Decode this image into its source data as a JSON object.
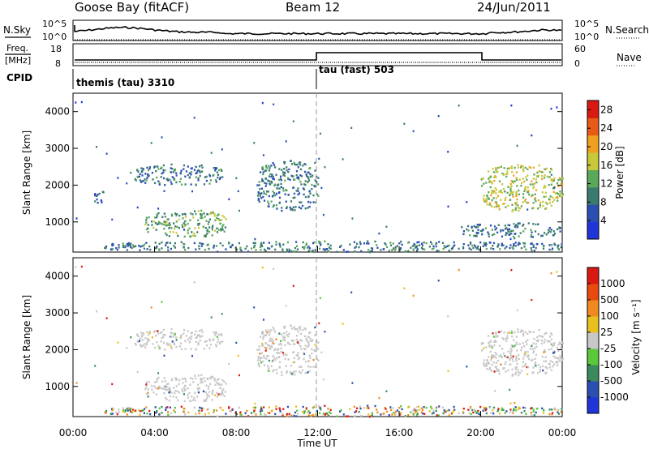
{
  "header": {
    "station": "Goose Bay (fitACF)",
    "beam": "Beam 12",
    "date": "24/Jun/2011"
  },
  "panels": {
    "nsky": {
      "label": "N.Sky",
      "left_ticks": [
        "10^5",
        "10^0"
      ],
      "right_ticks": [
        "10^5",
        "10^0"
      ],
      "right_label": "N.Search"
    },
    "freq": {
      "label_line1": "Freq.",
      "label_line2": "[MHz]",
      "left_ticks": [
        "18",
        "8"
      ],
      "right_ticks": [
        "60",
        "0"
      ],
      "right_label": "Nave"
    },
    "cpid": {
      "label": "CPID",
      "modes": [
        {
          "label": "themis (tau) 3310",
          "start_hour": 0
        },
        {
          "label": "tau (fast) 503",
          "start_hour": 12
        }
      ]
    }
  },
  "chart_data": [
    {
      "type": "heatmap",
      "title": "Power",
      "xlabel": "Time UT",
      "ylabel": "Slant Range [km]",
      "xlim": [
        0,
        24
      ],
      "ylim": [
        180,
        4500
      ],
      "x_ticks": [
        "00:00",
        "04:00",
        "08:00",
        "12:00",
        "16:00",
        "20:00",
        "00:00"
      ],
      "y_ticks": [
        1000,
        2000,
        3000,
        4000
      ],
      "colorbar": {
        "label": "Power [dB]",
        "ticks": [
          4,
          8,
          12,
          16,
          20,
          24,
          28
        ],
        "range": [
          0,
          30
        ],
        "colors": [
          "#1f35d8",
          "#2a4fb0",
          "#3b7a6e",
          "#5aa85a",
          "#c8c83a",
          "#f0a020",
          "#e85a18",
          "#d91a12"
        ]
      },
      "echo_regions": [
        {
          "t": [
            3.0,
            7.3
          ],
          "range": [
            2000,
            2600
          ],
          "dominant_db": 8
        },
        {
          "t": [
            1.0,
            1.5
          ],
          "range": [
            1500,
            1900
          ],
          "dominant_db": 4
        },
        {
          "t": [
            3.5,
            7.5
          ],
          "range": [
            600,
            1350
          ],
          "dominant_db": 12
        },
        {
          "t": [
            9.0,
            12.0
          ],
          "range": [
            1300,
            2700
          ],
          "dominant_db": 6
        },
        {
          "t": [
            1.5,
            24.0
          ],
          "range": [
            200,
            500
          ],
          "dominant_db": 8
        },
        {
          "t": [
            20.0,
            24.0
          ],
          "range": [
            1300,
            2600
          ],
          "dominant_db": 16
        },
        {
          "t": [
            19.0,
            24.0
          ],
          "range": [
            600,
            1000
          ],
          "dominant_db": 8
        }
      ]
    },
    {
      "type": "heatmap",
      "title": "Velocity",
      "xlabel": "Time UT",
      "ylabel": "Slant Range [km]",
      "xlim": [
        0,
        24
      ],
      "ylim": [
        180,
        4500
      ],
      "x_ticks": [
        "00:00",
        "04:00",
        "08:00",
        "12:00",
        "16:00",
        "20:00",
        "00:00"
      ],
      "y_ticks": [
        1000,
        2000,
        3000,
        4000
      ],
      "colorbar": {
        "label": "Velocity [m s⁻¹]",
        "ticks": [
          "1000",
          "500",
          "100",
          "25",
          "-25",
          "-100",
          "-500",
          "-1000"
        ],
        "colors": [
          "#1f35d8",
          "#2a4fb0",
          "#3b8a5e",
          "#5ac83a",
          "#c8c8c8",
          "#e8c020",
          "#f08a20",
          "#e84a10",
          "#d91a12"
        ]
      },
      "echo_regions": [
        {
          "t": [
            3.0,
            7.3
          ],
          "range": [
            2000,
            2600
          ],
          "dominant_velocity": "ground scatter"
        },
        {
          "t": [
            3.5,
            7.5
          ],
          "range": [
            600,
            1350
          ],
          "dominant_velocity": "ground scatter"
        },
        {
          "t": [
            9.0,
            12.0
          ],
          "range": [
            1300,
            2700
          ],
          "dominant_velocity": "ground scatter"
        },
        {
          "t": [
            1.5,
            24.0
          ],
          "range": [
            200,
            500
          ],
          "dominant_velocity": "mixed"
        },
        {
          "t": [
            20.0,
            24.0
          ],
          "range": [
            1300,
            2600
          ],
          "dominant_velocity": "ground scatter"
        }
      ]
    }
  ]
}
